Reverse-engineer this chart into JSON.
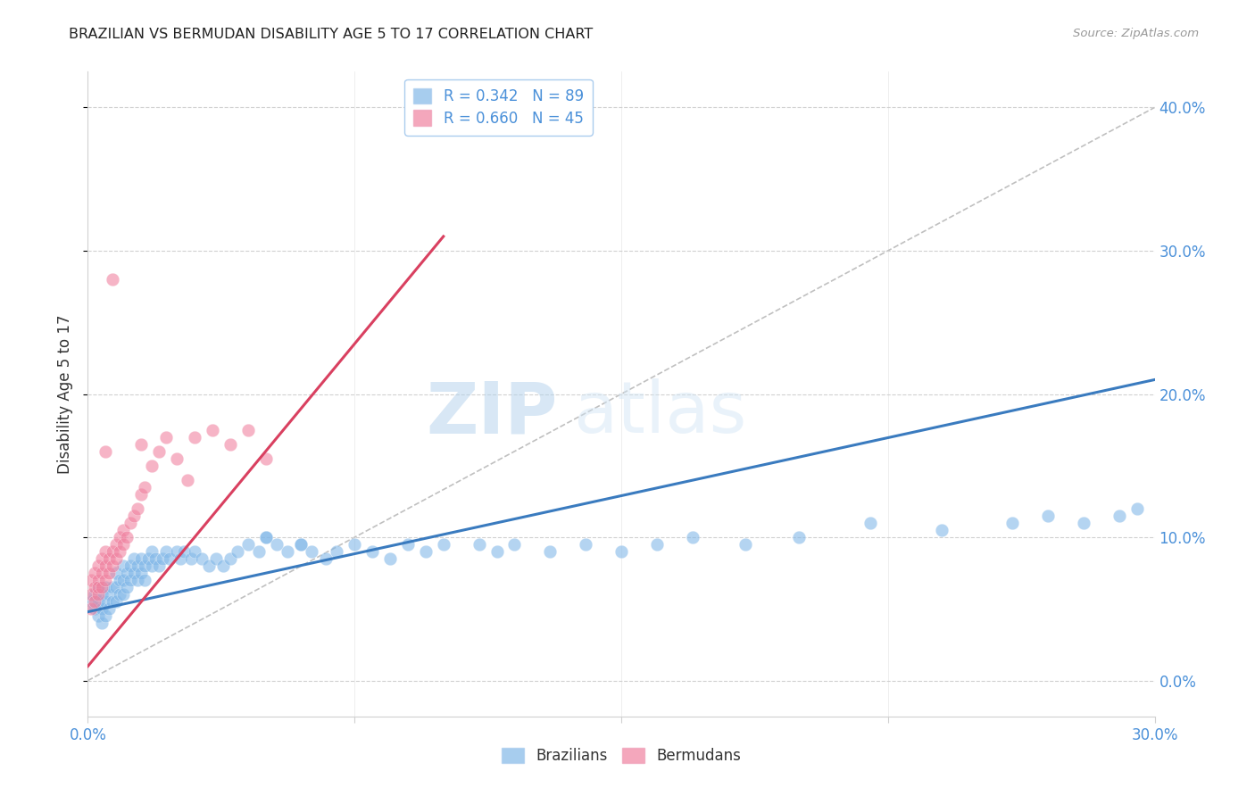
{
  "title": "BRAZILIAN VS BERMUDAN DISABILITY AGE 5 TO 17 CORRELATION CHART",
  "source": "Source: ZipAtlas.com",
  "ylabel": "Disability Age 5 to 17",
  "xlim": [
    0.0,
    0.3
  ],
  "ylim": [
    -0.025,
    0.425
  ],
  "background_color": "#ffffff",
  "grid_color": "#d0d0d0",
  "blue_color": "#82b8e8",
  "pink_color": "#f082a0",
  "blue_line_color": "#3a7bbf",
  "pink_line_color": "#d94060",
  "diagonal_line_color": "#c0c0c0",
  "brazil_slope": 0.54,
  "brazil_intercept": 0.048,
  "bermuda_slope": 3.0,
  "bermuda_intercept": 0.01,
  "brazil_line_xmax": 0.3,
  "bermuda_line_xmax": 0.1,
  "x_ticks": [
    0.0,
    0.3
  ],
  "x_tick_labels": [
    "0.0%",
    "30.0%"
  ],
  "y_ticks": [
    0.0,
    0.1,
    0.2,
    0.3,
    0.4
  ],
  "y_tick_labels": [
    "0.0%",
    "10.0%",
    "20.0%",
    "30.0%",
    "40.0%"
  ],
  "legend_r1": "R = 0.342",
  "legend_n1": "N = 89",
  "legend_r2": "R = 0.660",
  "legend_n2": "N = 45",
  "watermark_zip": "ZIP",
  "watermark_atlas": "atlas",
  "brazil_x": [
    0.001,
    0.002,
    0.002,
    0.003,
    0.003,
    0.003,
    0.004,
    0.004,
    0.004,
    0.005,
    0.005,
    0.005,
    0.006,
    0.006,
    0.007,
    0.007,
    0.008,
    0.008,
    0.008,
    0.009,
    0.009,
    0.01,
    0.01,
    0.01,
    0.011,
    0.011,
    0.012,
    0.012,
    0.013,
    0.013,
    0.014,
    0.014,
    0.015,
    0.015,
    0.016,
    0.016,
    0.017,
    0.018,
    0.018,
    0.019,
    0.02,
    0.021,
    0.022,
    0.023,
    0.025,
    0.026,
    0.027,
    0.029,
    0.03,
    0.032,
    0.034,
    0.036,
    0.038,
    0.04,
    0.042,
    0.045,
    0.048,
    0.05,
    0.053,
    0.056,
    0.06,
    0.063,
    0.067,
    0.07,
    0.075,
    0.08,
    0.085,
    0.09,
    0.095,
    0.1,
    0.11,
    0.115,
    0.12,
    0.13,
    0.14,
    0.15,
    0.16,
    0.17,
    0.185,
    0.2,
    0.22,
    0.24,
    0.26,
    0.27,
    0.28,
    0.29,
    0.295,
    0.05,
    0.06
  ],
  "brazil_y": [
    0.055,
    0.06,
    0.05,
    0.065,
    0.055,
    0.045,
    0.06,
    0.05,
    0.04,
    0.065,
    0.055,
    0.045,
    0.06,
    0.05,
    0.065,
    0.055,
    0.075,
    0.065,
    0.055,
    0.07,
    0.06,
    0.08,
    0.07,
    0.06,
    0.075,
    0.065,
    0.08,
    0.07,
    0.085,
    0.075,
    0.08,
    0.07,
    0.085,
    0.075,
    0.08,
    0.07,
    0.085,
    0.09,
    0.08,
    0.085,
    0.08,
    0.085,
    0.09,
    0.085,
    0.09,
    0.085,
    0.09,
    0.085,
    0.09,
    0.085,
    0.08,
    0.085,
    0.08,
    0.085,
    0.09,
    0.095,
    0.09,
    0.1,
    0.095,
    0.09,
    0.095,
    0.09,
    0.085,
    0.09,
    0.095,
    0.09,
    0.085,
    0.095,
    0.09,
    0.095,
    0.095,
    0.09,
    0.095,
    0.09,
    0.095,
    0.09,
    0.095,
    0.1,
    0.095,
    0.1,
    0.11,
    0.105,
    0.11,
    0.115,
    0.11,
    0.115,
    0.12,
    0.1,
    0.095
  ],
  "bermuda_x": [
    0.001,
    0.001,
    0.001,
    0.002,
    0.002,
    0.002,
    0.003,
    0.003,
    0.003,
    0.003,
    0.004,
    0.004,
    0.004,
    0.005,
    0.005,
    0.005,
    0.006,
    0.006,
    0.007,
    0.007,
    0.008,
    0.008,
    0.009,
    0.009,
    0.01,
    0.01,
    0.011,
    0.012,
    0.013,
    0.014,
    0.015,
    0.016,
    0.018,
    0.02,
    0.022,
    0.025,
    0.028,
    0.03,
    0.035,
    0.04,
    0.045,
    0.05,
    0.015,
    0.005,
    0.007
  ],
  "bermuda_y": [
    0.05,
    0.06,
    0.07,
    0.055,
    0.065,
    0.075,
    0.06,
    0.07,
    0.08,
    0.065,
    0.065,
    0.075,
    0.085,
    0.07,
    0.08,
    0.09,
    0.075,
    0.085,
    0.08,
    0.09,
    0.085,
    0.095,
    0.09,
    0.1,
    0.095,
    0.105,
    0.1,
    0.11,
    0.115,
    0.12,
    0.13,
    0.135,
    0.15,
    0.16,
    0.17,
    0.155,
    0.14,
    0.17,
    0.175,
    0.165,
    0.175,
    0.155,
    0.165,
    0.16,
    0.28
  ]
}
